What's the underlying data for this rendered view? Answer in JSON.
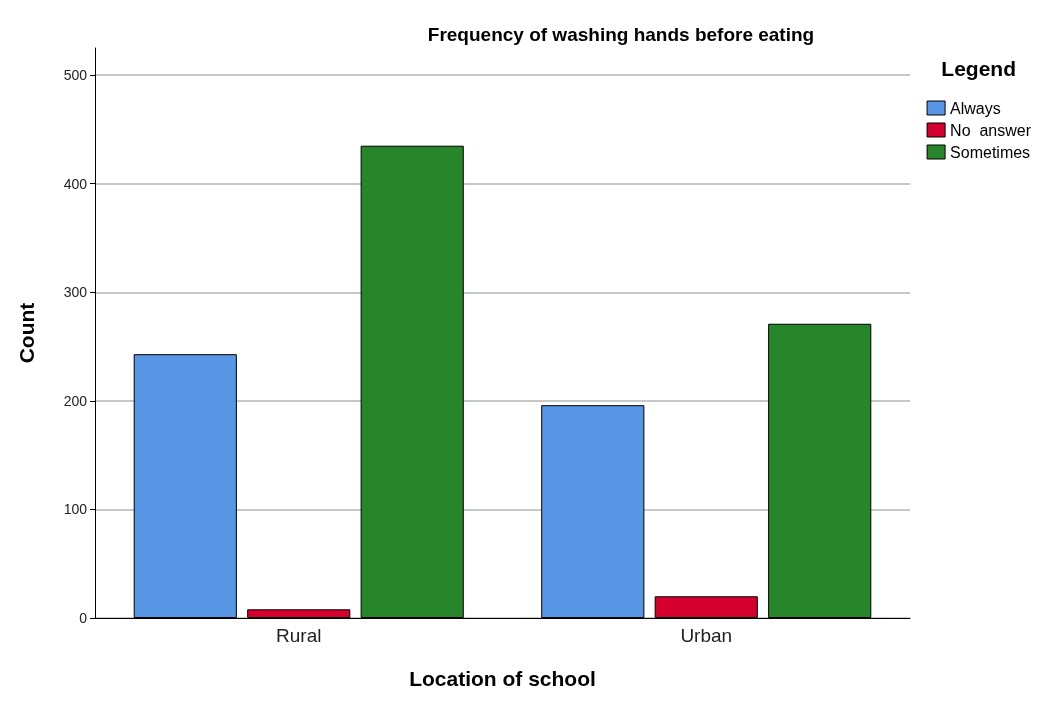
{
  "chart_data": {
    "type": "bar",
    "title": "Frequency of washing hands before eating",
    "xlabel": "Location of school",
    "ylabel": "Count",
    "legend_title": "Legend",
    "categories": [
      "Rural",
      "Urban"
    ],
    "series": [
      {
        "name": "Always",
        "color": "#5896e6",
        "values": [
          243,
          196
        ]
      },
      {
        "name": "No  answer",
        "color": "#d5002e",
        "values": [
          8,
          20
        ]
      },
      {
        "name": "Sometimes",
        "color": "#28862a",
        "values": [
          435,
          271
        ]
      }
    ],
    "ylim": [
      0,
      525
    ],
    "yticks": [
      0,
      100,
      200,
      300,
      400,
      500
    ],
    "grid": "y",
    "legend": "top right"
  }
}
